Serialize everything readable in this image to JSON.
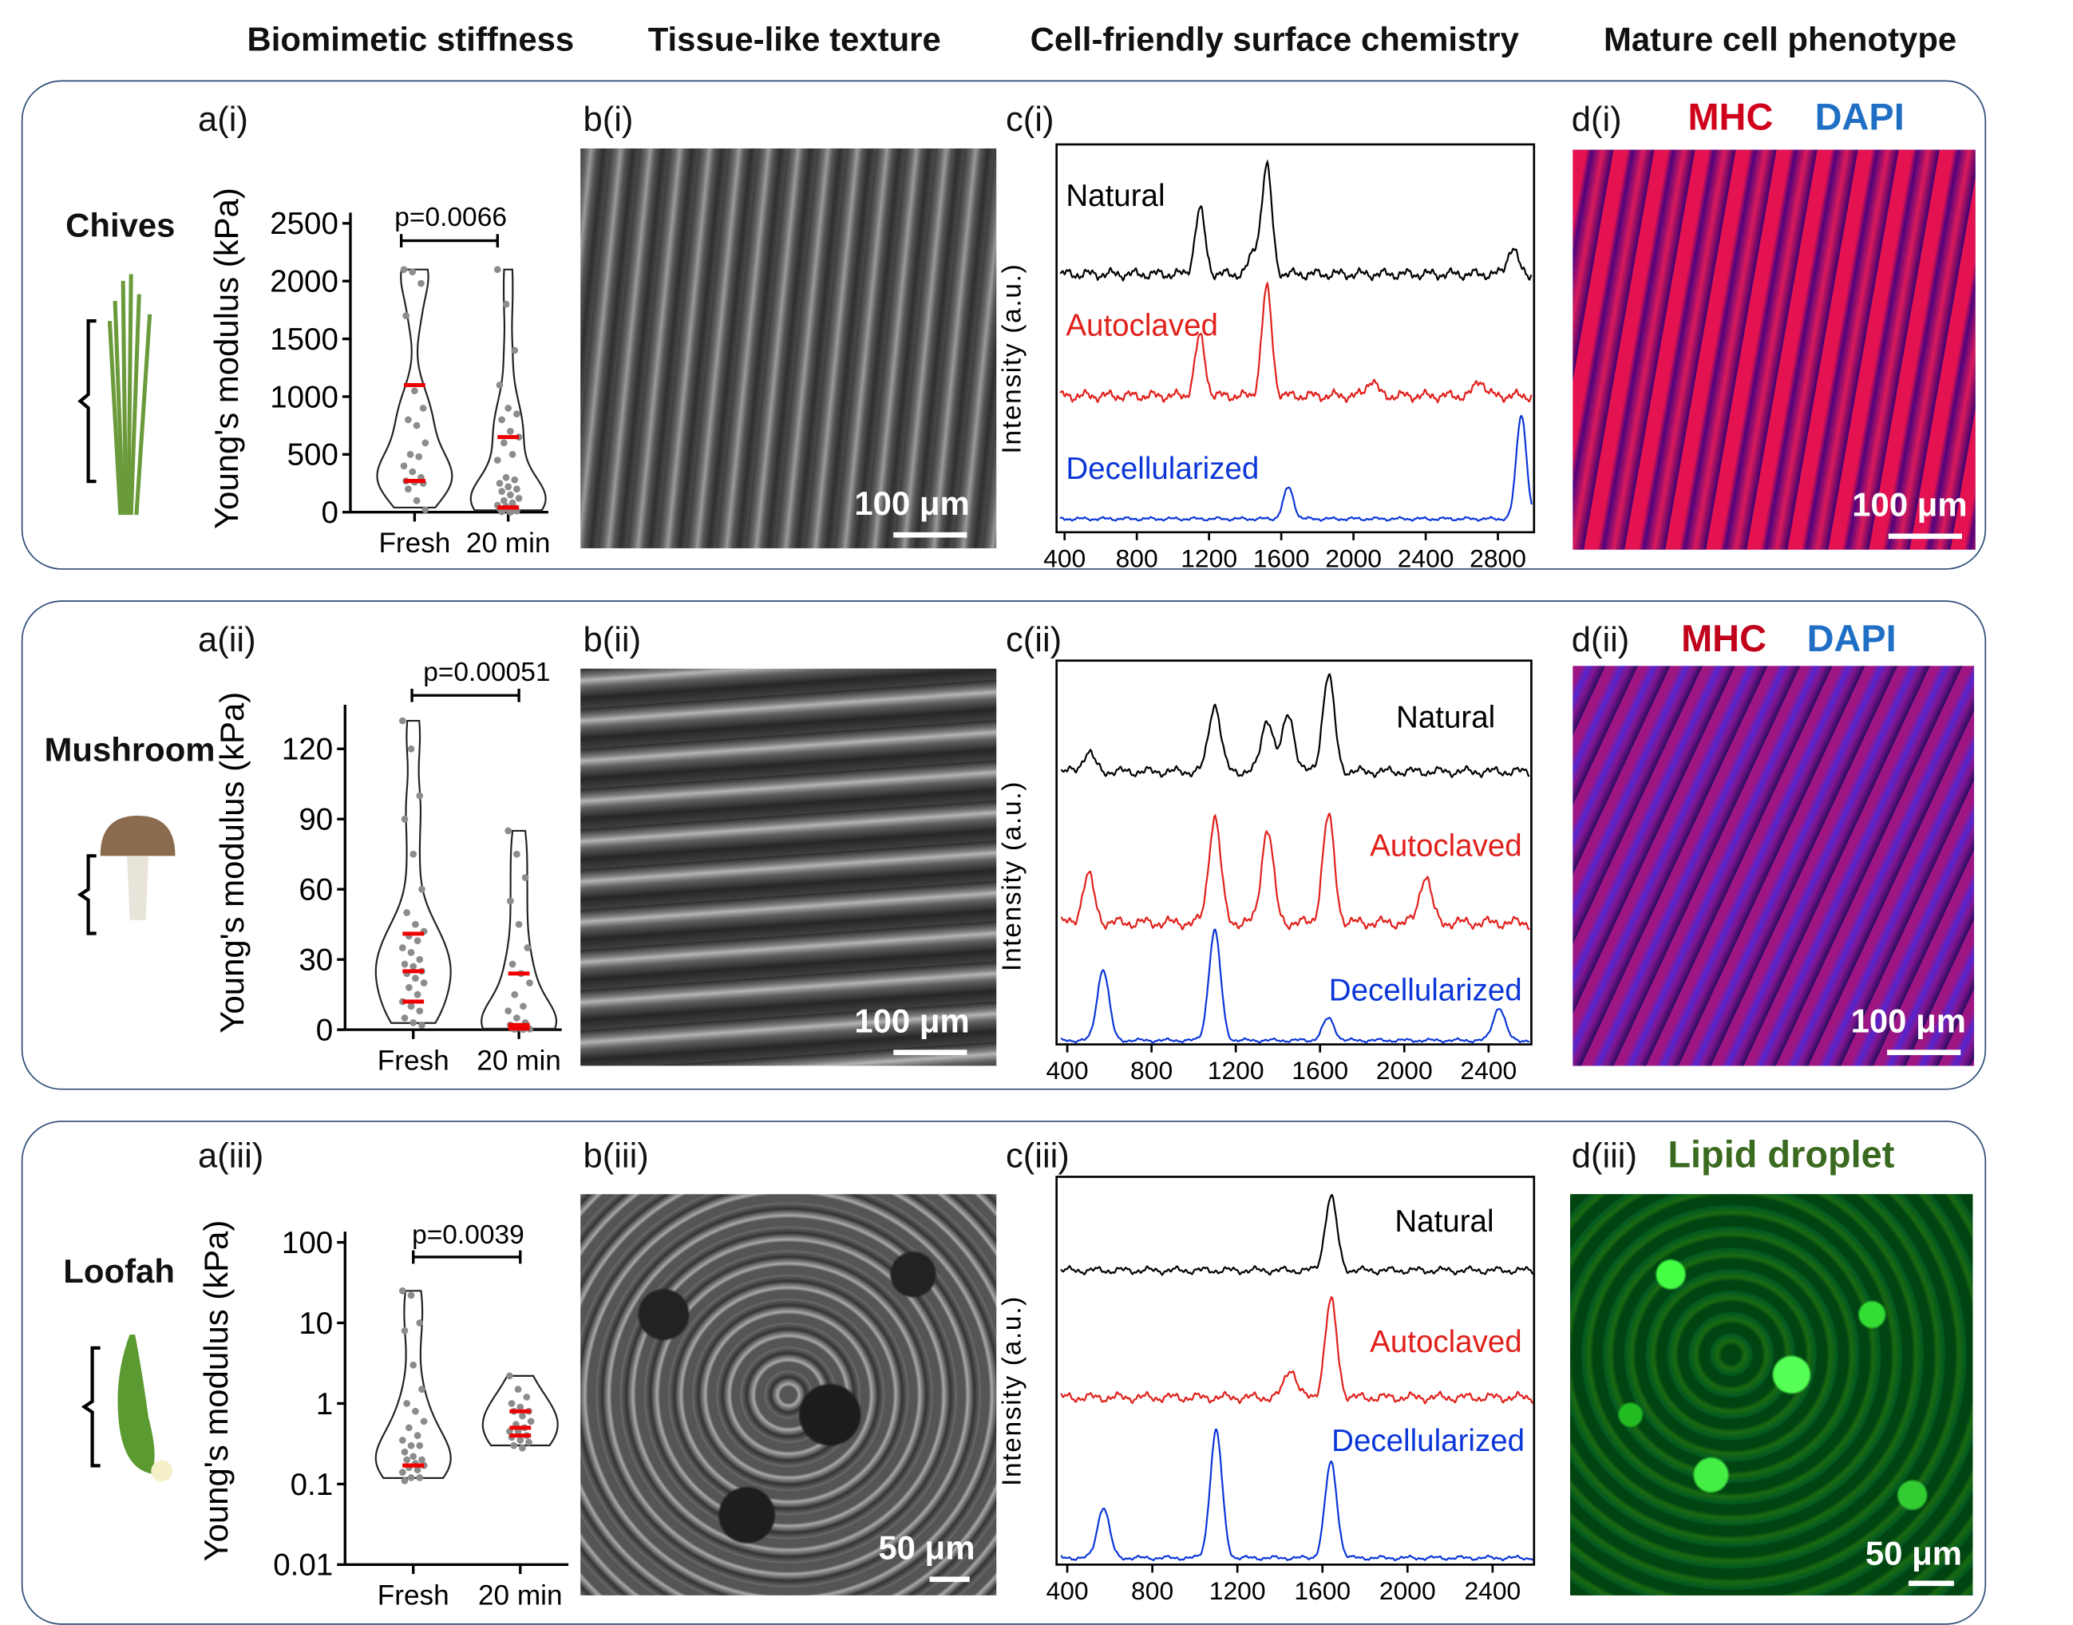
{
  "headers": [
    "Biomimetic stiffness",
    "Tissue-like texture",
    "Cell-friendly surface chemistry",
    "Mature cell phenotype"
  ],
  "rows": [
    {
      "sample": "Chives",
      "labels": {
        "a": "a(i)",
        "b": "b(i)",
        "c": "c(i)",
        "d": "d(i)"
      },
      "sem_scale": "100 μm",
      "fluor_scale": "100 μm",
      "fluor_title": [
        {
          "text": "MHC",
          "color": "#d0021b"
        },
        {
          "text": "DAPI",
          "color": "#1f6fc5"
        }
      ]
    },
    {
      "sample": "Mushroom",
      "labels": {
        "a": "a(ii)",
        "b": "b(ii)",
        "c": "c(ii)",
        "d": "d(ii)"
      },
      "sem_scale": "100 μm",
      "fluor_scale": "100 μm",
      "fluor_title": [
        {
          "text": "MHC",
          "color": "#c0021b"
        },
        {
          "text": "DAPI",
          "color": "#1f6fc5"
        }
      ]
    },
    {
      "sample": "Loofah",
      "labels": {
        "a": "a(iii)",
        "b": "b(iii)",
        "c": "c(iii)",
        "d": "d(iii)"
      },
      "sem_scale": "50 μm",
      "fluor_scale": "50 μm",
      "fluor_title": [
        {
          "text": "Lipid droplet",
          "color": "#3a6a1f"
        }
      ]
    }
  ],
  "chart_data": [
    {
      "type": "violin",
      "ylabel": "Young's modulus (kPa)",
      "categories": [
        "Fresh",
        "20 min"
      ],
      "ylim": [
        0,
        2500
      ],
      "scale": "linear",
      "yticks": [
        "0",
        "500",
        "1000",
        "1500",
        "2000",
        "2500"
      ],
      "pvalue": "p=0.0066",
      "series": [
        {
          "category": "Fresh",
          "quartiles": [
            270,
            270,
            1100
          ],
          "points": [
            2100,
            2080,
            1980,
            1700,
            1050,
            900,
            800,
            750,
            600,
            500,
            480,
            400,
            350,
            300,
            270,
            260,
            250,
            200,
            100,
            20
          ]
        },
        {
          "category": "20 min",
          "quartiles": [
            40,
            40,
            650
          ],
          "points": [
            2100,
            1800,
            1400,
            1100,
            900,
            850,
            800,
            700,
            650,
            600,
            500,
            450,
            300,
            280,
            250,
            220,
            200,
            180,
            150,
            120,
            100,
            80,
            60,
            50,
            40,
            30,
            20,
            10,
            5,
            0
          ]
        }
      ]
    },
    {
      "type": "violin",
      "ylabel": "Young's modulus (kPa)",
      "categories": [
        "Fresh",
        "20 min"
      ],
      "ylim": [
        0,
        135
      ],
      "scale": "linear",
      "yticks": [
        "0",
        "30",
        "60",
        "90",
        "120"
      ],
      "pvalue": "p=0.00051",
      "series": [
        {
          "category": "Fresh",
          "quartiles": [
            12,
            25,
            41
          ],
          "points": [
            132,
            120,
            100,
            90,
            75,
            60,
            50,
            45,
            42,
            40,
            38,
            35,
            33,
            30,
            28,
            27,
            25,
            24,
            22,
            20,
            18,
            15,
            12,
            10,
            8,
            5,
            3,
            2
          ]
        },
        {
          "category": "20 min",
          "quartiles": [
            0.5,
            2,
            24
          ],
          "points": [
            85,
            75,
            65,
            55,
            45,
            35,
            28,
            24,
            20,
            15,
            10,
            8,
            5,
            3,
            2,
            1,
            1,
            0.5,
            0.5,
            0.3,
            0.2,
            0.1
          ]
        }
      ]
    },
    {
      "type": "violin",
      "ylabel": "Young's modulus (kPa)",
      "categories": [
        "Fresh",
        "20 min"
      ],
      "ylim": [
        0.01,
        100
      ],
      "scale": "log",
      "yticks": [
        "0.01",
        "0.1",
        "1",
        "10",
        "100"
      ],
      "pvalue": "p=0.0039",
      "series": [
        {
          "category": "Fresh",
          "quartiles": [
            0.17,
            0.17,
            0.17
          ],
          "points": [
            25,
            22,
            10,
            8,
            3,
            1.5,
            1,
            0.8,
            0.6,
            0.5,
            0.4,
            0.35,
            0.3,
            0.3,
            0.25,
            0.22,
            0.2,
            0.2,
            0.18,
            0.17,
            0.16,
            0.15,
            0.14,
            0.12,
            0.12,
            0.11
          ]
        },
        {
          "category": "20 min",
          "quartiles": [
            0.4,
            0.5,
            0.8
          ],
          "points": [
            2.2,
            1.5,
            1.2,
            1,
            0.9,
            0.8,
            0.8,
            0.7,
            0.6,
            0.55,
            0.5,
            0.45,
            0.45,
            0.4,
            0.38,
            0.35,
            0.33,
            0.3,
            0.28
          ]
        }
      ]
    },
    {
      "type": "line",
      "ylabel": "Intensity (a.u.)",
      "xlim": [
        355,
        3000
      ],
      "xticks": [
        "400",
        "800",
        "1200",
        "1600",
        "2000",
        "2400",
        "2800"
      ],
      "series": [
        {
          "name": "Natural",
          "color": "#000000",
          "peaks": [
            [
              1150,
              0.6
            ],
            [
              1450,
              0.2
            ],
            [
              1520,
              1.0
            ],
            [
              2880,
              0.25
            ]
          ]
        },
        {
          "name": "Autoclaved",
          "color": "#e0201b",
          "peaks": [
            [
              1150,
              0.55
            ],
            [
              1520,
              1.0
            ],
            [
              2100,
              0.15
            ],
            [
              2700,
              0.15
            ]
          ]
        },
        {
          "name": "Decellularized",
          "color": "#0a36d8",
          "peaks": [
            [
              1640,
              0.3
            ],
            [
              2930,
              1.0
            ]
          ]
        }
      ]
    },
    {
      "type": "line",
      "ylabel": "Intensity (a.u.)",
      "xlim": [
        350,
        2605
      ],
      "xticks": [
        "400",
        "800",
        "1200",
        "1600",
        "2000",
        "2400"
      ],
      "series": [
        {
          "name": "Natural",
          "color": "#000000",
          "peaks": [
            [
              500,
              0.2
            ],
            [
              1100,
              0.7
            ],
            [
              1350,
              0.55
            ],
            [
              1450,
              0.6
            ],
            [
              1640,
              1.0
            ]
          ]
        },
        {
          "name": "Autoclaved",
          "color": "#e0201b",
          "peaks": [
            [
              500,
              0.4
            ],
            [
              1100,
              0.9
            ],
            [
              1350,
              0.8
            ],
            [
              1640,
              0.9
            ],
            [
              2100,
              0.4
            ]
          ]
        },
        {
          "name": "Decellularized",
          "color": "#0a36d8",
          "peaks": [
            [
              570,
              0.65
            ],
            [
              1100,
              1.0
            ],
            [
              1640,
              0.2
            ],
            [
              2450,
              0.3
            ]
          ]
        }
      ]
    },
    {
      "type": "line",
      "ylabel": "Intensity (a.u.)",
      "xlim": [
        350,
        2600
      ],
      "xticks": [
        "400",
        "800",
        "1200",
        "1600",
        "2000",
        "2400"
      ],
      "series": [
        {
          "name": "Natural",
          "color": "#000000",
          "peaks": [
            [
              1640,
              1.0
            ]
          ]
        },
        {
          "name": "Autoclaved",
          "color": "#e0201b",
          "peaks": [
            [
              1450,
              0.3
            ],
            [
              1640,
              1.0
            ]
          ]
        },
        {
          "name": "Decellularized",
          "color": "#0a36d8",
          "peaks": [
            [
              570,
              0.4
            ],
            [
              1100,
              1.0
            ],
            [
              1640,
              0.75
            ]
          ]
        }
      ]
    }
  ]
}
